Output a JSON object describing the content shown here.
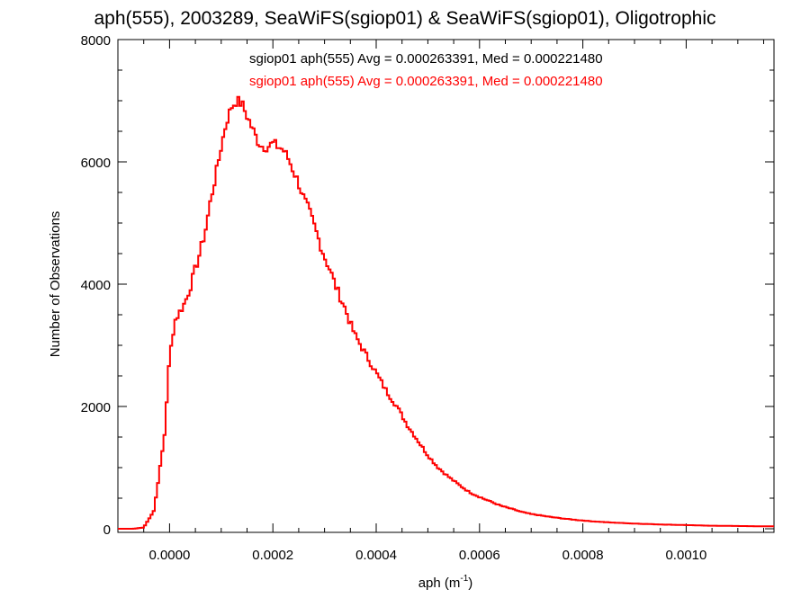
{
  "chart_data": {
    "type": "histogram",
    "title": "aph(555), 2003289, SeaWiFS(sgiop01) & SeaWiFS(sgiop01), Oligotrophic",
    "xlabel_base": "aph (m",
    "xlabel_sup": "-1",
    "xlabel_end": ")",
    "ylabel": "Number of Observations",
    "xlim": [
      -0.0001,
      0.00117
    ],
    "ylim": [
      0,
      8000
    ],
    "x_ticks": [
      0.0,
      0.0002,
      0.0004,
      0.0006,
      0.0008,
      0.001
    ],
    "x_tick_labels": [
      "0.0000",
      "0.0002",
      "0.0004",
      "0.0006",
      "0.0008",
      "0.0010"
    ],
    "y_ticks": [
      0,
      2000,
      4000,
      6000,
      8000
    ],
    "y_tick_labels": [
      "0",
      "2000",
      "4000",
      "6000",
      "8000"
    ],
    "grid": false,
    "legend": [
      {
        "text": "sgiop01 aph(555) Avg = 0.000263391, Med = 0.000221480",
        "color": "#000000"
      },
      {
        "text": "sgiop01 aph(555) Avg = 0.000263391, Med = 0.000221480",
        "color": "#ff0000"
      }
    ],
    "series": [
      {
        "color": "#ff0000",
        "x": [
          -0.0001,
          -7e-05,
          -5e-05,
          -3e-05,
          -1e-05,
          0.0,
          1e-05,
          2e-05,
          3e-05,
          4e-05,
          5e-05,
          6e-05,
          7e-05,
          8e-05,
          9e-05,
          0.0001,
          0.00011,
          0.00012,
          0.00013,
          0.00014,
          0.00015,
          0.00016,
          0.00017,
          0.00018,
          0.00019,
          0.0002,
          0.00021,
          0.00022,
          0.00023,
          0.00024,
          0.00025,
          0.00026,
          0.00027,
          0.00028,
          0.00029,
          0.0003,
          0.00031,
          0.00032,
          0.00033,
          0.00034,
          0.00035,
          0.00036,
          0.00037,
          0.00038,
          0.00039,
          0.0004,
          0.00042,
          0.00044,
          0.00046,
          0.00048,
          0.0005,
          0.00052,
          0.00054,
          0.00056,
          0.00058,
          0.0006,
          0.00062,
          0.00064,
          0.00066,
          0.00068,
          0.0007,
          0.00074,
          0.00078,
          0.00082,
          0.00086,
          0.0009,
          0.00095,
          0.001,
          0.00105,
          0.0011,
          0.00115,
          0.00117
        ],
        "y": [
          0,
          0,
          20,
          300,
          1500,
          2800,
          3400,
          3550,
          3700,
          3950,
          4250,
          4550,
          4900,
          5400,
          5800,
          6250,
          6650,
          6900,
          7000,
          6950,
          6750,
          6550,
          6350,
          6250,
          6250,
          6300,
          6250,
          6200,
          6050,
          5850,
          5650,
          5400,
          5200,
          4950,
          4700,
          4450,
          4250,
          4000,
          3800,
          3600,
          3350,
          3150,
          3000,
          2850,
          2700,
          2550,
          2250,
          2000,
          1700,
          1450,
          1200,
          1000,
          850,
          720,
          600,
          520,
          450,
          380,
          330,
          280,
          240,
          190,
          150,
          120,
          100,
          85,
          70,
          60,
          50,
          45,
          40,
          40
        ]
      }
    ]
  }
}
